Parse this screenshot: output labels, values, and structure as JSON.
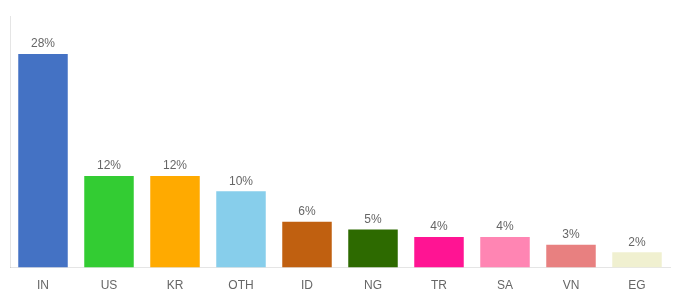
{
  "chart_data": {
    "type": "bar",
    "categories": [
      "IN",
      "US",
      "KR",
      "OTH",
      "ID",
      "NG",
      "TR",
      "SA",
      "VN",
      "EG"
    ],
    "values": [
      28,
      12,
      12,
      10,
      6,
      5,
      4,
      4,
      3,
      2
    ],
    "value_labels": [
      "28%",
      "12%",
      "12%",
      "10%",
      "6%",
      "5%",
      "4%",
      "4%",
      "3%",
      "2%"
    ],
    "colors": [
      "#4472c4",
      "#33cc33",
      "#ffaa00",
      "#87ceeb",
      "#c06010",
      "#2d6a00",
      "#ff1493",
      "#ff85b3",
      "#e88080",
      "#f0f0d0"
    ],
    "data_labels": true,
    "ylim": [
      0,
      33
    ],
    "grid": false,
    "tick_labels": "x"
  }
}
